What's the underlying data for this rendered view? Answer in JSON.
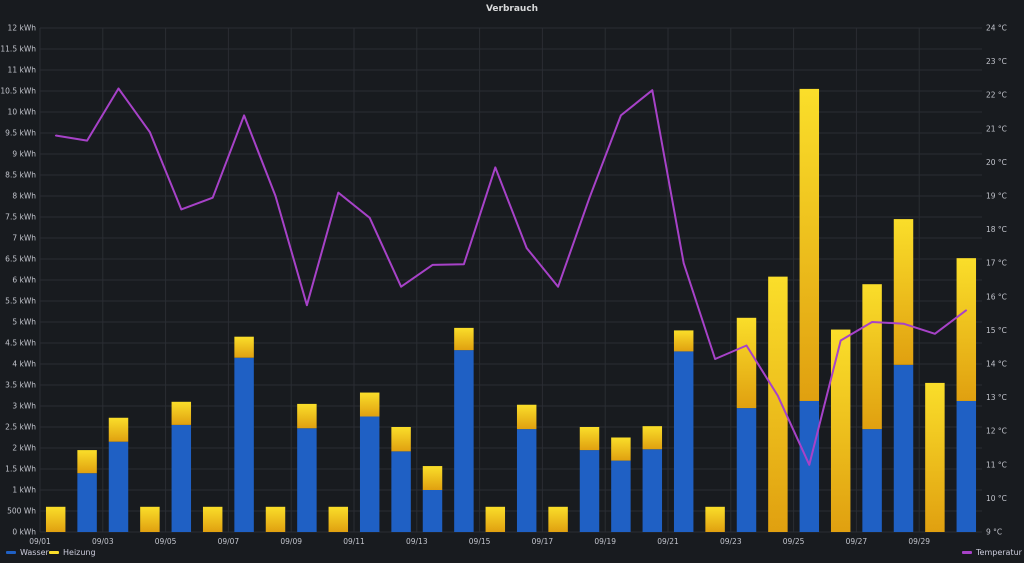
{
  "panel": {
    "title": "Verbrauch"
  },
  "colors": {
    "wasser": "#1f60c4",
    "heizung_light": "#fade2a",
    "heizung_dark": "#e0a010",
    "temperatur": "#a742c8",
    "grid": "#2a2d33"
  },
  "legend": {
    "wasser": "Wasser",
    "heizung": "Heizung",
    "temperatur": "Temperatur"
  },
  "chart_data": {
    "type": "bar",
    "title": "Verbrauch",
    "categories": [
      "09/01",
      "09/02",
      "09/03",
      "09/04",
      "09/05",
      "09/06",
      "09/07",
      "09/08",
      "09/09",
      "09/10",
      "09/11",
      "09/12",
      "09/13",
      "09/14",
      "09/15",
      "09/16",
      "09/17",
      "09/18",
      "09/19",
      "09/20",
      "09/21",
      "09/22",
      "09/23",
      "09/24",
      "09/25",
      "09/26",
      "09/27",
      "09/28",
      "09/29",
      "09/30"
    ],
    "x_tick_labels": [
      "09/01",
      "09/03",
      "09/05",
      "09/07",
      "09/09",
      "09/11",
      "09/13",
      "09/15",
      "09/17",
      "09/19",
      "09/21",
      "09/23",
      "09/25",
      "09/27",
      "09/29"
    ],
    "series": [
      {
        "name": "Wasser",
        "type": "stacked-bar",
        "axis": "left",
        "unit": "kWh",
        "values": [
          0,
          1.4,
          2.15,
          0,
          2.55,
          0,
          4.15,
          0,
          2.47,
          0,
          2.75,
          1.92,
          1.0,
          4.33,
          0,
          2.45,
          0,
          1.95,
          1.7,
          1.97,
          4.3,
          0,
          2.95,
          0,
          3.12,
          0,
          2.45,
          3.98,
          0,
          3.12
        ]
      },
      {
        "name": "Heizung",
        "type": "stacked-bar",
        "axis": "left",
        "unit": "kWh",
        "values": [
          0.6,
          0.55,
          0.57,
          0.6,
          0.55,
          0.6,
          0.5,
          0.6,
          0.58,
          0.6,
          0.57,
          0.58,
          0.57,
          0.53,
          0.6,
          0.58,
          0.6,
          0.55,
          0.55,
          0.55,
          0.5,
          0.6,
          2.15,
          6.08,
          7.43,
          4.82,
          3.45,
          3.47,
          3.55,
          3.4
        ]
      },
      {
        "name": "Temperatur",
        "type": "line",
        "axis": "right",
        "unit": "°C",
        "values": [
          20.8,
          20.65,
          22.2,
          20.9,
          18.6,
          18.95,
          21.4,
          19.0,
          15.75,
          19.1,
          18.35,
          16.3,
          16.95,
          16.97,
          19.85,
          17.45,
          16.3,
          18.95,
          21.4,
          22.15,
          17.0,
          14.15,
          14.55,
          13.05,
          11.0,
          14.7,
          15.25,
          15.2,
          14.9,
          15.6
        ]
      }
    ],
    "y_left": {
      "min": 0,
      "max": 12,
      "step": 0.5,
      "tick_labels": [
        "0 kWh",
        "500 Wh",
        "1 kWh",
        "1.5 kWh",
        "2 kWh",
        "2.5 kWh",
        "3 kWh",
        "3.5 kWh",
        "4 kWh",
        "4.5 kWh",
        "5 kWh",
        "5.5 kWh",
        "6 kWh",
        "6.5 kWh",
        "7 kWh",
        "7.5 kWh",
        "8 kWh",
        "8.5 kWh",
        "9 kWh",
        "9.5 kWh",
        "10 kWh",
        "10.5 kWh",
        "11 kWh",
        "11.5 kWh",
        "12 kWh"
      ]
    },
    "y_right": {
      "min": 9,
      "max": 24,
      "step": 1,
      "tick_labels": [
        "9 °C",
        "10 °C",
        "11 °C",
        "12 °C",
        "13 °C",
        "14 °C",
        "15 °C",
        "16 °C",
        "17 °C",
        "18 °C",
        "19 °C",
        "20 °C",
        "21 °C",
        "22 °C",
        "23 °C",
        "24 °C"
      ]
    },
    "grid": true,
    "legend_position": "bottom"
  }
}
